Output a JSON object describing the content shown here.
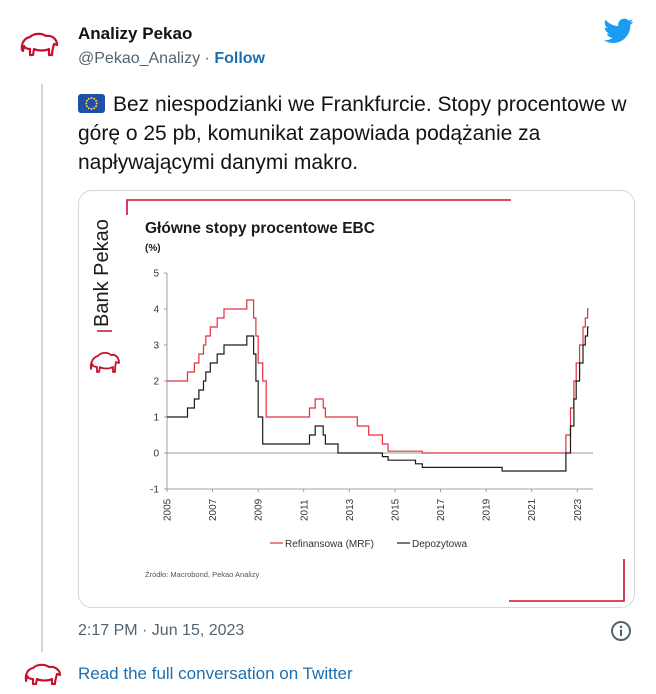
{
  "tweet": {
    "author_name": "Analizy Pekao",
    "handle": "@Pekao_Analizy",
    "separator": "·",
    "follow_label": "Follow",
    "text": "Bez niespodzianki we Frankfurcie. Stopy procentowe w górę o 25 pb, komunikat zapowiada podążanie za napływającymi danymi makro.",
    "flag_icon": "eu-flag-icon",
    "timestamp": "2:17 PM · Jun 15, 2023",
    "footer_link": "Read the full conversation on Twitter"
  },
  "colors": {
    "brand_red": "#c8102e",
    "link_blue": "#1d6fb0",
    "twitter_blue": "#1d9bf0",
    "muted": "#536471",
    "refi_line": "#e0303f",
    "depo_line": "#1a1a1a"
  },
  "icons": {
    "avatar": "pekao-bison-logo",
    "brand": "twitter-bird-icon",
    "info": "info-icon",
    "footer": "pekao-bison-logo"
  },
  "chart_image": {
    "side_brand": "Bank Pekao",
    "source_note": "Źródło: Macrobond, Pekao Analizy"
  },
  "chart_data": {
    "type": "line",
    "title": "Główne stopy procentowe EBC",
    "ylabel": "(%)",
    "xlabel": "",
    "ylim": [
      -1,
      5
    ],
    "xlim": [
      2005,
      2023.6
    ],
    "y_ticks": [
      "5",
      "4",
      "3",
      "2",
      "1",
      "0",
      "-1"
    ],
    "x_ticks": [
      "2005",
      "2007",
      "2009",
      "2011",
      "2013",
      "2015",
      "2017",
      "2019",
      "2021",
      "2023"
    ],
    "legend_position": "bottom",
    "series": [
      {
        "name": "Refinansowa (MRF)",
        "x": [
          2005.0,
          2005.9,
          2005.9,
          2006.2,
          2006.2,
          2006.4,
          2006.4,
          2006.6,
          2006.6,
          2006.7,
          2006.7,
          2006.9,
          2006.9,
          2007.2,
          2007.2,
          2007.5,
          2007.5,
          2008.5,
          2008.5,
          2008.8,
          2008.8,
          2008.9,
          2008.9,
          2009.0,
          2009.0,
          2009.2,
          2009.2,
          2009.35,
          2009.35,
          2011.25,
          2011.25,
          2011.5,
          2011.5,
          2011.85,
          2011.85,
          2011.95,
          2011.95,
          2013.35,
          2013.35,
          2013.85,
          2013.85,
          2014.45,
          2014.45,
          2014.7,
          2014.7,
          2016.2,
          2016.2,
          2022.5,
          2022.5,
          2022.7,
          2022.7,
          2022.85,
          2022.85,
          2022.95,
          2022.95,
          2023.1,
          2023.1,
          2023.25,
          2023.25,
          2023.35,
          2023.35,
          2023.45,
          2023.45,
          2023.5
        ],
        "y": [
          2.0,
          2.0,
          2.25,
          2.25,
          2.5,
          2.5,
          2.75,
          2.75,
          3.0,
          3.0,
          3.25,
          3.25,
          3.5,
          3.5,
          3.75,
          3.75,
          4.0,
          4.0,
          4.25,
          4.25,
          3.75,
          3.75,
          3.25,
          3.25,
          2.5,
          2.5,
          2.0,
          2.0,
          1.0,
          1.0,
          1.25,
          1.25,
          1.5,
          1.5,
          1.25,
          1.25,
          1.0,
          1.0,
          0.75,
          0.75,
          0.5,
          0.5,
          0.25,
          0.25,
          0.05,
          0.05,
          0.0,
          0.0,
          0.5,
          0.5,
          1.25,
          1.25,
          2.0,
          2.0,
          2.5,
          2.5,
          3.0,
          3.0,
          3.5,
          3.5,
          3.75,
          3.75,
          4.0,
          4.0
        ]
      },
      {
        "name": "Depozytowa",
        "x": [
          2005.0,
          2005.9,
          2005.9,
          2006.2,
          2006.2,
          2006.4,
          2006.4,
          2006.6,
          2006.6,
          2006.7,
          2006.7,
          2006.9,
          2006.9,
          2007.2,
          2007.2,
          2007.5,
          2007.5,
          2008.5,
          2008.5,
          2008.8,
          2008.8,
          2008.9,
          2008.9,
          2009.0,
          2009.0,
          2009.2,
          2009.2,
          2011.25,
          2011.25,
          2011.5,
          2011.5,
          2011.85,
          2011.85,
          2011.95,
          2011.95,
          2012.5,
          2012.5,
          2014.45,
          2014.45,
          2014.7,
          2014.7,
          2015.9,
          2015.9,
          2016.2,
          2016.2,
          2019.7,
          2019.7,
          2022.5,
          2022.5,
          2022.7,
          2022.7,
          2022.85,
          2022.85,
          2022.95,
          2022.95,
          2023.1,
          2023.1,
          2023.25,
          2023.25,
          2023.35,
          2023.35,
          2023.45,
          2023.45,
          2023.5
        ],
        "y": [
          1.0,
          1.0,
          1.25,
          1.25,
          1.5,
          1.5,
          1.75,
          1.75,
          2.0,
          2.0,
          2.25,
          2.25,
          2.5,
          2.5,
          2.75,
          2.75,
          3.0,
          3.0,
          3.25,
          3.25,
          2.75,
          2.75,
          2.0,
          2.0,
          1.0,
          1.0,
          0.25,
          0.25,
          0.5,
          0.5,
          0.75,
          0.75,
          0.5,
          0.5,
          0.25,
          0.25,
          0.0,
          0.0,
          -0.1,
          -0.1,
          -0.2,
          -0.2,
          -0.3,
          -0.3,
          -0.4,
          -0.4,
          -0.5,
          -0.5,
          0.0,
          0.0,
          0.75,
          0.75,
          1.5,
          1.5,
          2.0,
          2.0,
          2.5,
          2.5,
          3.0,
          3.0,
          3.25,
          3.25,
          3.5,
          3.5
        ]
      }
    ]
  }
}
